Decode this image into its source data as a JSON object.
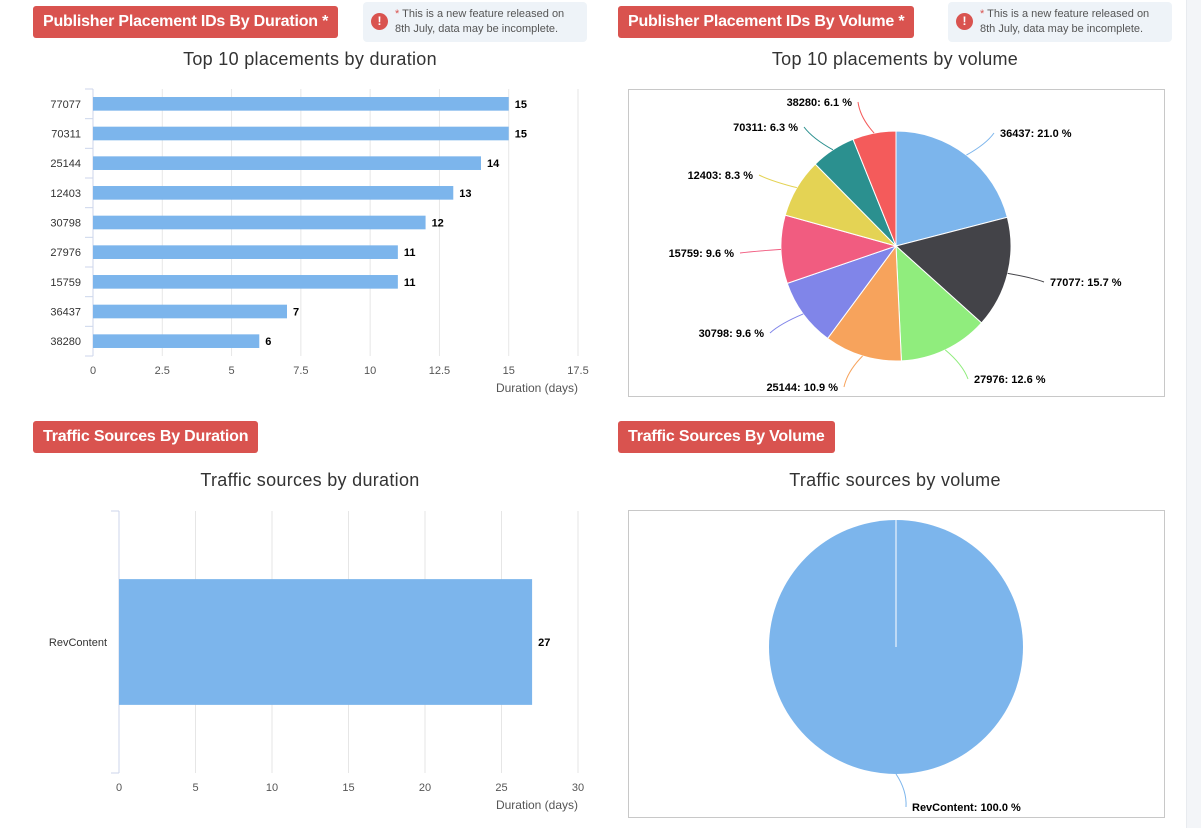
{
  "sections": {
    "placements_duration": {
      "badge": "Publisher Placement IDs By Duration *",
      "note_star": "*",
      "note_line1": "This is a new feature released on",
      "note_line2": "8th July, data may be incomplete."
    },
    "placements_volume": {
      "badge": "Publisher Placement IDs By Volume *",
      "note_star": "*",
      "note_line1": "This is a new feature released on",
      "note_line2": "8th July, data may be incomplete."
    },
    "traffic_duration": {
      "badge": "Traffic Sources By Duration"
    },
    "traffic_volume": {
      "badge": "Traffic Sources By Volume"
    }
  },
  "icons": {
    "alert": "exclamation-circle-icon",
    "alert_glyph": "!"
  },
  "colors": {
    "badge": "#d9534f",
    "bar": "#7cb5ec",
    "grid": "#e6e6e6",
    "pie": [
      "#7cb5ec",
      "#434348",
      "#90ed7d",
      "#f7a35c",
      "#8085e9",
      "#f15c80",
      "#e4d354",
      "#2b908f",
      "#f45b5b"
    ]
  },
  "chart_data": [
    {
      "type": "bar",
      "title": "Top 10 placements by duration",
      "xlabel": "Duration (days)",
      "categories": [
        "77077",
        "70311",
        "25144",
        "12403",
        "30798",
        "27976",
        "15759",
        "36437",
        "38280"
      ],
      "values": [
        15,
        15,
        14,
        13,
        12,
        11,
        11,
        7,
        6
      ],
      "ticks": [
        "0",
        "2.5",
        "5",
        "7.5",
        "10",
        "12.5",
        "15",
        "17.5"
      ],
      "xlim": [
        0,
        17.5
      ]
    },
    {
      "type": "pie",
      "title": "Top 10 placements by volume",
      "slices": [
        {
          "label": "36437",
          "value": 21.0,
          "text": "36437: 21.0 %"
        },
        {
          "label": "77077",
          "value": 15.7,
          "text": "77077: 15.7 %"
        },
        {
          "label": "27976",
          "value": 12.6,
          "text": "27976: 12.6 %"
        },
        {
          "label": "25144",
          "value": 10.9,
          "text": "25144: 10.9 %"
        },
        {
          "label": "30798",
          "value": 9.6,
          "text": "30798: 9.6 %"
        },
        {
          "label": "15759",
          "value": 9.6,
          "text": "15759: 9.6 %"
        },
        {
          "label": "12403",
          "value": 8.3,
          "text": "12403: 8.3 %"
        },
        {
          "label": "70311",
          "value": 6.3,
          "text": "70311: 6.3 %"
        },
        {
          "label": "38280",
          "value": 6.1,
          "text": "38280: 6.1 %"
        }
      ]
    },
    {
      "type": "bar",
      "title": "Traffic sources by duration",
      "xlabel": "Duration (days)",
      "categories": [
        "RevContent"
      ],
      "values": [
        27
      ],
      "ticks": [
        "0",
        "5",
        "10",
        "15",
        "20",
        "25",
        "30"
      ],
      "xlim": [
        0,
        30
      ]
    },
    {
      "type": "pie",
      "title": "Traffic sources by volume",
      "slices": [
        {
          "label": "RevContent",
          "value": 100.0,
          "text": "RevContent: 100.0 %"
        }
      ]
    }
  ]
}
